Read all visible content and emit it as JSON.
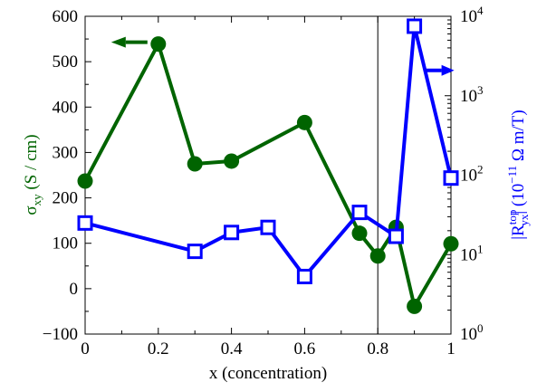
{
  "chart_data": {
    "type": "line",
    "x_axis": {
      "label": "x (concentration)",
      "range": [
        0,
        1
      ],
      "ticks": [
        0,
        0.2,
        0.4,
        0.6,
        0.8,
        1
      ],
      "tick_labels": [
        "0",
        "0.2",
        "0.4",
        "0.6",
        "0.8",
        "1"
      ]
    },
    "y_left": {
      "label_main": "σ",
      "label_sub": "xy",
      "label_rest": " (S / cm)",
      "range": [
        -100,
        600
      ],
      "ticks": [
        -100,
        0,
        100,
        200,
        300,
        400,
        500,
        600
      ],
      "tick_labels": [
        "−100",
        "0",
        "100",
        "200",
        "300",
        "400",
        "500",
        "600"
      ],
      "color": "#006400"
    },
    "y_right": {
      "label_pre": "|R",
      "label_sup": "top",
      "label_sub": "yx",
      "label_mid": "| (10",
      "label_exp": "−11",
      "label_post": " Ω m/T)",
      "scale": "log",
      "range": [
        1,
        10000
      ],
      "ticks": [
        1,
        10,
        100,
        1000,
        10000
      ],
      "tick_labels": [
        {
          "base": "10",
          "exp": "0"
        },
        {
          "base": "10",
          "exp": "1"
        },
        {
          "base": "10",
          "exp": "2"
        },
        {
          "base": "10",
          "exp": "3"
        },
        {
          "base": "10",
          "exp": "4"
        }
      ],
      "color": "#0000ff"
    },
    "vertical_line_x": 0.8,
    "series": [
      {
        "axis": "left",
        "marker": "filled-circle",
        "color": "#006400",
        "points": [
          {
            "x": 0.0,
            "y": 237
          },
          {
            "x": 0.2,
            "y": 539
          },
          {
            "x": 0.3,
            "y": 275
          },
          {
            "x": 0.4,
            "y": 281
          },
          {
            "x": 0.6,
            "y": 366
          },
          {
            "x": 0.75,
            "y": 122
          },
          {
            "x": 0.8,
            "y": 72
          },
          {
            "x": 0.85,
            "y": 135
          },
          {
            "x": 0.9,
            "y": -39
          },
          {
            "x": 1.0,
            "y": 99
          }
        ]
      },
      {
        "axis": "right",
        "marker": "open-square",
        "color": "#0000ff",
        "points": [
          {
            "x": 0.0,
            "y": 25
          },
          {
            "x": 0.3,
            "y": 11
          },
          {
            "x": 0.4,
            "y": 19
          },
          {
            "x": 0.5,
            "y": 22
          },
          {
            "x": 0.6,
            "y": 5.3
          },
          {
            "x": 0.75,
            "y": 34
          },
          {
            "x": 0.85,
            "y": 17
          },
          {
            "x": 0.9,
            "y": 7500
          },
          {
            "x": 1.0,
            "y": 92
          }
        ]
      }
    ],
    "annotations": [
      {
        "type": "arrow",
        "direction": "left",
        "series": "left",
        "color": "#006400"
      },
      {
        "type": "arrow",
        "direction": "right",
        "series": "right",
        "color": "#0000ff"
      }
    ]
  }
}
